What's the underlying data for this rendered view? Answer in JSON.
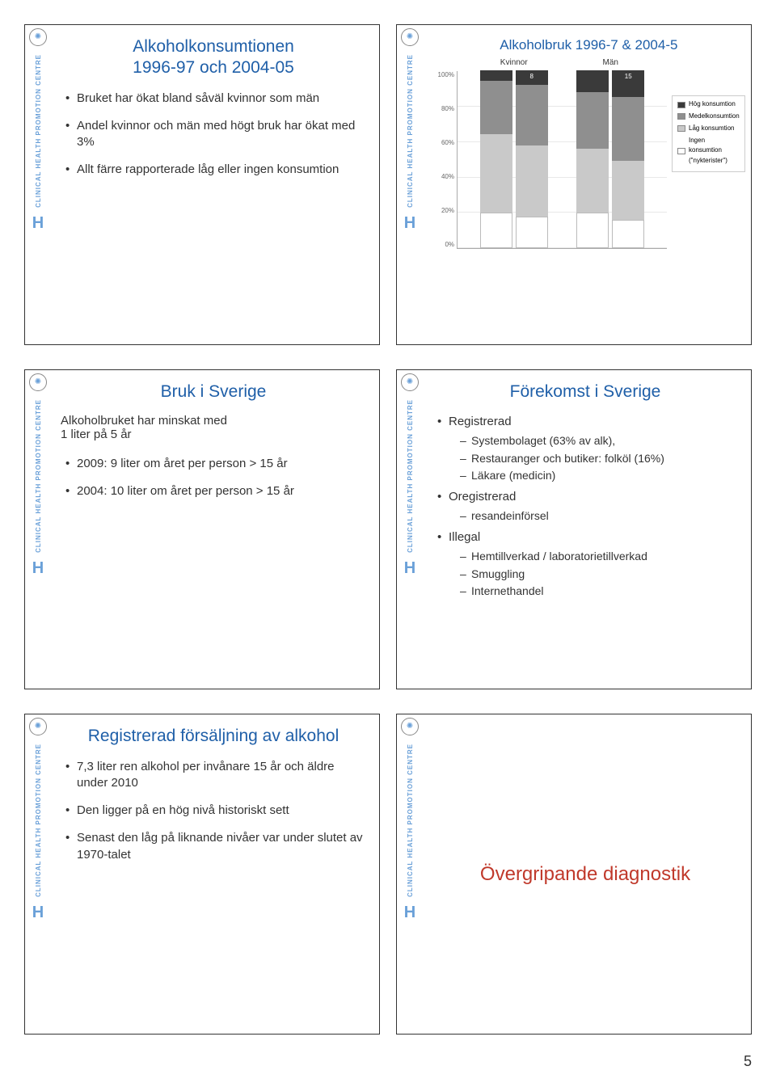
{
  "page_number": "5",
  "sidebar": {
    "vtext": "CLINICAL HEALTH PROMOTION CENTRE",
    "logo_glyph": "✺",
    "big_letter": "H"
  },
  "slide1": {
    "title": "Alkoholkonsumtionen\n1996-97 och 2004-05",
    "bullets": [
      "Bruket har ökat bland såväl kvinnor som män",
      "Andel kvinnor och män med högt bruk har ökat med 3%",
      "Allt färre rapporterade låg eller ingen konsumtion"
    ]
  },
  "slide2": {
    "title": "Alkoholbruk 1996-7 & 2004-5",
    "chart": {
      "type": "stacked-bar",
      "categories": [
        "Kvinnor",
        "Män"
      ],
      "bars": [
        {
          "group": 0,
          "stacks": [
            6,
            30,
            44,
            20
          ],
          "top_label": ""
        },
        {
          "group": 0,
          "stacks": [
            8,
            34,
            40,
            18
          ],
          "top_label": "8"
        },
        {
          "group": 1,
          "stacks": [
            12,
            32,
            36,
            20
          ],
          "top_label": ""
        },
        {
          "group": 1,
          "stacks": [
            15,
            36,
            33,
            16
          ],
          "top_label": "15"
        }
      ],
      "stack_colors": [
        "#3a3a3a",
        "#8f8f8f",
        "#c9c9c9",
        "#ffffff"
      ],
      "stack_borders": [
        "#3a3a3a",
        "#8f8f8f",
        "#c9c9c9",
        "#bbb"
      ],
      "y_ticks": [
        "100%",
        "80%",
        "60%",
        "40%",
        "20%",
        "0%"
      ],
      "legend": [
        {
          "label": "Hög konsumtion",
          "color": "#3a3a3a"
        },
        {
          "label": "Medelkonsumtion",
          "color": "#8f8f8f"
        },
        {
          "label": "Låg konsumtion",
          "color": "#c9c9c9"
        },
        {
          "label": "Ingen konsumtion (\"nykterister\")",
          "color": "#ffffff"
        }
      ]
    }
  },
  "slide3": {
    "title": "Bruk i Sverige",
    "subtitle": "Alkoholbruket har minskat med\n1 liter på 5 år",
    "bullets": [
      "2009:  9 liter om året per person > 15 år",
      "2004: 10 liter om året per person > 15 år"
    ]
  },
  "slide4": {
    "title": "Förekomst i Sverige",
    "items": [
      {
        "label": "Registrerad",
        "sub": [
          "Systembolaget (63% av alk),",
          "Restauranger och butiker: folköl (16%)",
          "Läkare (medicin)"
        ]
      },
      {
        "label": "Oregistrerad",
        "sub": [
          "resandeinförsel"
        ]
      },
      {
        "label": "Illegal",
        "sub": [
          "Hemtillverkad / laboratorietillverkad",
          "Smuggling",
          "Internethandel"
        ]
      }
    ]
  },
  "slide5": {
    "title": "Registrerad försäljning av alkohol",
    "bullets": [
      "7,3 liter ren alkohol per invånare 15 år och äldre under 2010",
      "Den ligger på en hög nivå historiskt sett",
      "Senast den låg på liknande nivåer var under slutet av 1970-talet"
    ]
  },
  "slide6": {
    "title": "Övergripande diagnostik"
  }
}
